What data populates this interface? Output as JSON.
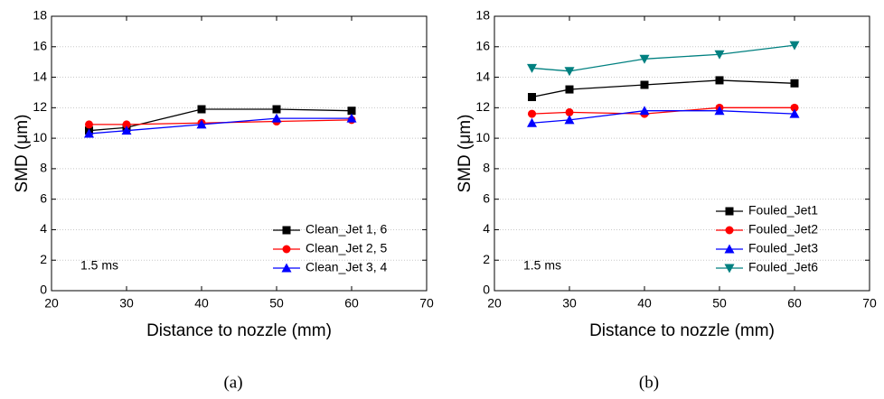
{
  "chart_data": [
    {
      "type": "line",
      "caption": "(a)",
      "xlabel": "Distance to nozzle (mm)",
      "ylabel": "SMD (μm)",
      "annotation": "1.5 ms",
      "x": [
        25,
        30,
        40,
        50,
        60
      ],
      "xlim": [
        20,
        70
      ],
      "xticks": [
        20,
        30,
        40,
        50,
        60,
        70
      ],
      "ylim": [
        0,
        18
      ],
      "yticks": [
        0,
        2,
        4,
        6,
        8,
        10,
        12,
        14,
        16,
        18
      ],
      "grid": true,
      "legend": "lower right",
      "series": [
        {
          "name": "Clean_Jet 1, 6",
          "color": "#000000",
          "marker": "square",
          "values": [
            10.5,
            10.7,
            11.9,
            11.9,
            11.8
          ]
        },
        {
          "name": "Clean_Jet 2, 5",
          "color": "#ff0000",
          "marker": "circle",
          "values": [
            10.9,
            10.9,
            11.0,
            11.1,
            11.2
          ]
        },
        {
          "name": "Clean_Jet 3, 4",
          "color": "#0000ff",
          "marker": "triangle-up",
          "values": [
            10.3,
            10.5,
            10.9,
            11.3,
            11.3
          ]
        }
      ]
    },
    {
      "type": "line",
      "caption": "(b)",
      "xlabel": "Distance to nozzle (mm)",
      "ylabel": "SMD (μm)",
      "annotation": "1.5 ms",
      "x": [
        25,
        30,
        40,
        50,
        60
      ],
      "xlim": [
        20,
        70
      ],
      "xticks": [
        20,
        30,
        40,
        50,
        60,
        70
      ],
      "ylim": [
        0,
        18
      ],
      "yticks": [
        0,
        2,
        4,
        6,
        8,
        10,
        12,
        14,
        16,
        18
      ],
      "grid": true,
      "legend": "lower right",
      "series": [
        {
          "name": "Fouled_Jet1",
          "color": "#000000",
          "marker": "square",
          "values": [
            12.7,
            13.2,
            13.5,
            13.8,
            13.6
          ]
        },
        {
          "name": "Fouled_Jet2",
          "color": "#ff0000",
          "marker": "circle",
          "values": [
            11.6,
            11.7,
            11.6,
            12.0,
            12.0
          ]
        },
        {
          "name": "Fouled_Jet3",
          "color": "#0000ff",
          "marker": "triangle-up",
          "values": [
            11.0,
            11.2,
            11.8,
            11.8,
            11.6
          ]
        },
        {
          "name": "Fouled_Jet6",
          "color": "#008080",
          "marker": "triangle-down",
          "values": [
            14.6,
            14.4,
            15.2,
            15.5,
            16.1
          ]
        }
      ]
    }
  ]
}
